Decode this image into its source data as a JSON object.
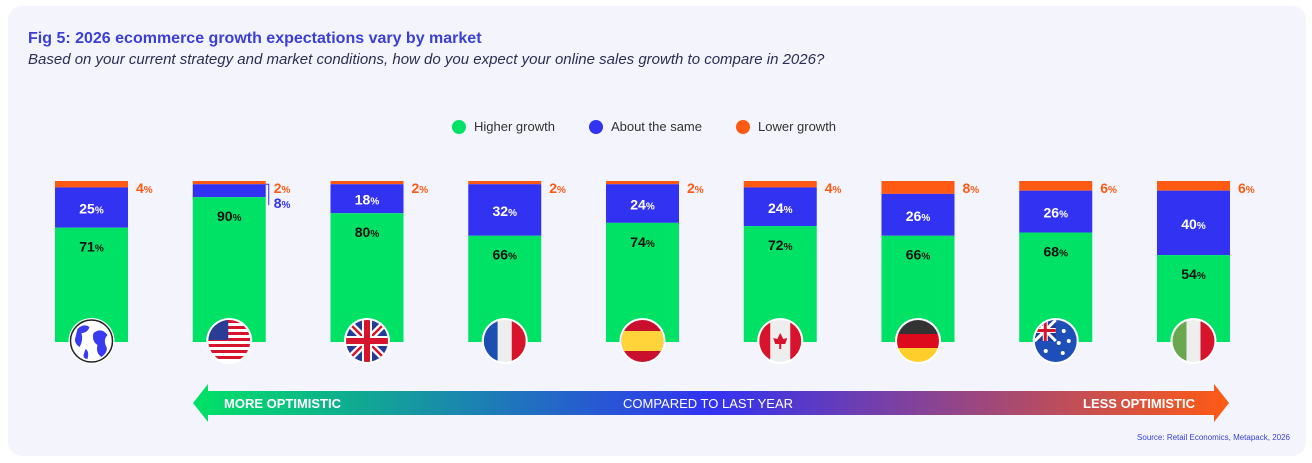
{
  "title": "Fig 5: 2026 ecommerce growth expectations vary by market",
  "subtitle": "Based on your current strategy and market conditions, how do you expect your online sales growth to compare in 2026?",
  "legend": [
    {
      "label": "Higher growth",
      "color": "#00e265"
    },
    {
      "label": "About the same",
      "color": "#3232f2"
    },
    {
      "label": "Lower growth",
      "color": "#ff5a14"
    }
  ],
  "scale": {
    "left_label": "MORE OPTIMISTIC",
    "center_label": "COMPARED TO LAST YEAR",
    "right_label": "LESS OPTIMISTIC"
  },
  "source": "Source: Retail Economics, Metapack, 2026",
  "chart_data": {
    "type": "bar",
    "stacked": true,
    "categories": [
      "global-icon",
      "usa-flag-icon",
      "uk-flag-icon",
      "france-flag-icon",
      "spain-flag-icon",
      "canada-flag-icon",
      "germany-flag-icon",
      "australia-flag-icon",
      "italy-flag-icon"
    ],
    "series": [
      {
        "name": "Higher growth",
        "color": "#00e265",
        "values": [
          71,
          90,
          80,
          66,
          74,
          72,
          66,
          68,
          54
        ]
      },
      {
        "name": "About the same",
        "color": "#3232f2",
        "values": [
          25,
          8,
          18,
          32,
          24,
          24,
          26,
          26,
          40
        ]
      },
      {
        "name": "Lower growth",
        "color": "#ff5a14",
        "values": [
          4,
          2,
          2,
          2,
          2,
          4,
          8,
          6,
          6
        ]
      }
    ],
    "unit": "%",
    "ylim": [
      0,
      100
    ],
    "legend_position": "top-center"
  }
}
